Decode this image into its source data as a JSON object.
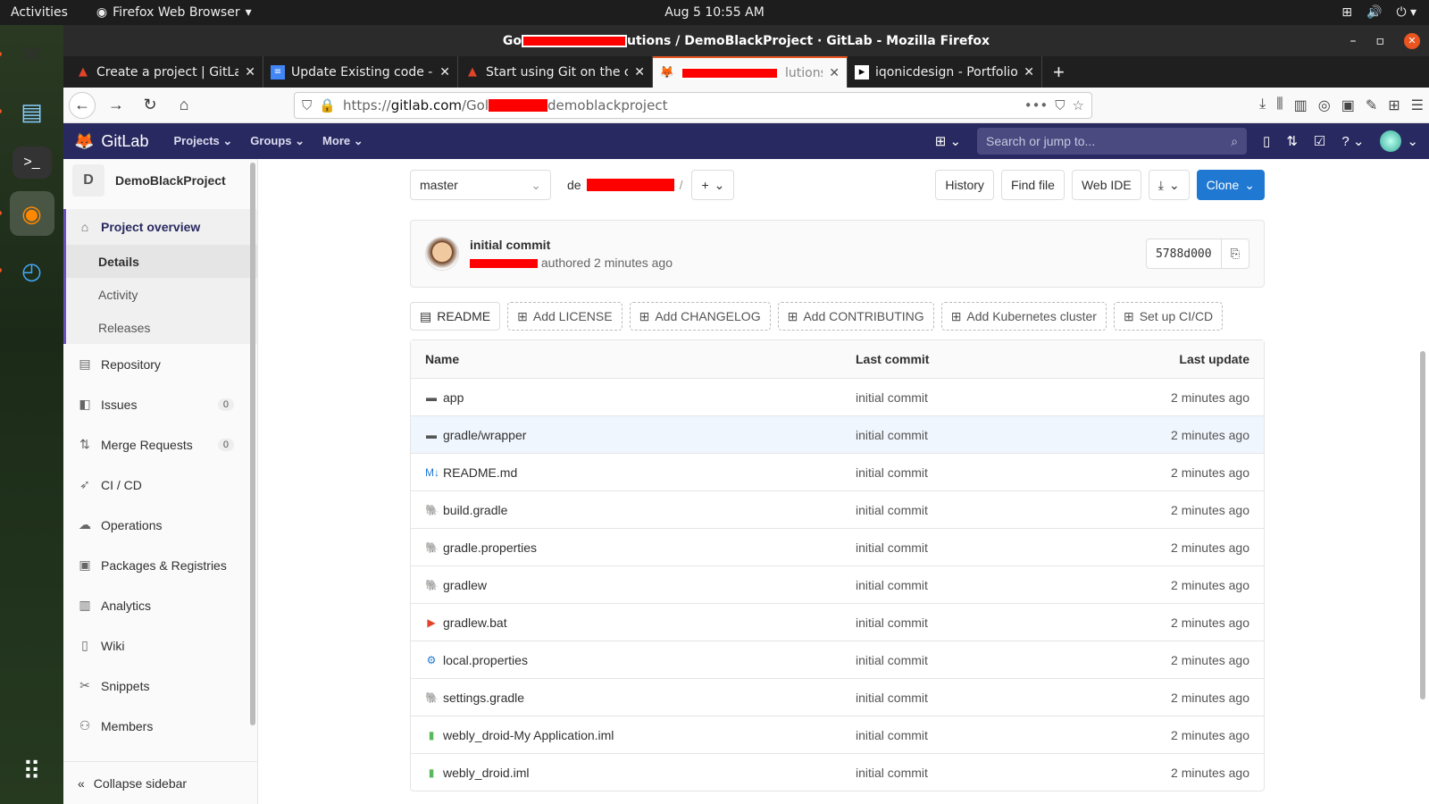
{
  "os": {
    "activities": "Activities",
    "app_menu": "Firefox Web Browser",
    "clock": "Aug 5  10:55 AM"
  },
  "window": {
    "title_prefix": "Go",
    "title_suffix": "utions / DemoBlackProject · GitLab - Mozilla Firefox"
  },
  "tabs": [
    {
      "title": "Create a project | GitLab",
      "icon": "gitlab-docs-icon"
    },
    {
      "title": "Update Existing code - G",
      "icon": "docs-icon"
    },
    {
      "title": "Start using Git on the co",
      "icon": "gitlab-docs-icon"
    },
    {
      "title": "lutions",
      "icon": "gitlab-icon",
      "active": true
    },
    {
      "title": "iqonicdesign - Portfolio |",
      "icon": "bird-icon"
    }
  ],
  "url": {
    "prefix": "https://",
    "host": "gitlab.com",
    "path1": "/Gol",
    "path2": "demoblackproject"
  },
  "gitlab": {
    "brand": "GitLab",
    "menus": [
      "Projects",
      "Groups",
      "More"
    ],
    "search_placeholder": "Search or jump to..."
  },
  "sidebar": {
    "project_initial": "D",
    "project_name": "DemoBlackProject",
    "overview": "Project overview",
    "sub": [
      "Details",
      "Activity",
      "Releases"
    ],
    "items": [
      {
        "label": "Repository",
        "icon": "doc-icon"
      },
      {
        "label": "Issues",
        "icon": "issues-icon",
        "badge": "0"
      },
      {
        "label": "Merge Requests",
        "icon": "merge-icon",
        "badge": "0"
      },
      {
        "label": "CI / CD",
        "icon": "rocket-icon"
      },
      {
        "label": "Operations",
        "icon": "cloud-icon"
      },
      {
        "label": "Packages & Registries",
        "icon": "package-icon"
      },
      {
        "label": "Analytics",
        "icon": "chart-icon"
      },
      {
        "label": "Wiki",
        "icon": "book-icon"
      },
      {
        "label": "Snippets",
        "icon": "scissors-icon"
      },
      {
        "label": "Members",
        "icon": "users-icon"
      }
    ],
    "collapse": "Collapse sidebar"
  },
  "repo": {
    "branch": "master",
    "path_prefix": "de",
    "buttons": {
      "history": "History",
      "find_file": "Find file",
      "web_ide": "Web IDE",
      "clone": "Clone"
    }
  },
  "commit": {
    "title": "initial commit",
    "meta": "authored 2 minutes ago",
    "sha": "5788d000"
  },
  "links": [
    "README",
    "Add LICENSE",
    "Add CHANGELOG",
    "Add CONTRIBUTING",
    "Add Kubernetes cluster",
    "Set up CI/CD"
  ],
  "table": {
    "headers": [
      "Name",
      "Last commit",
      "Last update"
    ],
    "rows": [
      {
        "name": "app",
        "icon": "folder-icon",
        "commit": "initial commit",
        "updated": "2 minutes ago"
      },
      {
        "name": "gradle/wrapper",
        "icon": "folder-icon",
        "commit": "initial commit",
        "updated": "2 minutes ago"
      },
      {
        "name": "README.md",
        "icon": "markdown-icon",
        "commit": "initial commit",
        "updated": "2 minutes ago"
      },
      {
        "name": "build.gradle",
        "icon": "gradle-icon",
        "commit": "initial commit",
        "updated": "2 minutes ago"
      },
      {
        "name": "gradle.properties",
        "icon": "gradle-icon",
        "commit": "initial commit",
        "updated": "2 minutes ago"
      },
      {
        "name": "gradlew",
        "icon": "gradle-icon",
        "commit": "initial commit",
        "updated": "2 minutes ago"
      },
      {
        "name": "gradlew.bat",
        "icon": "terminal-file-icon",
        "commit": "initial commit",
        "updated": "2 minutes ago"
      },
      {
        "name": "local.properties",
        "icon": "gear-icon",
        "commit": "initial commit",
        "updated": "2 minutes ago"
      },
      {
        "name": "settings.gradle",
        "icon": "gradle-icon",
        "commit": "initial commit",
        "updated": "2 minutes ago"
      },
      {
        "name": "webly_droid-My Application.iml",
        "icon": "iml-icon",
        "commit": "initial commit",
        "updated": "2 minutes ago"
      },
      {
        "name": "webly_droid.iml",
        "icon": "iml-icon",
        "commit": "initial commit",
        "updated": "2 minutes ago"
      }
    ]
  },
  "colors": {
    "gitlab_header": "#292961",
    "accent": "#1f78d1",
    "ubuntu_orange": "#e95420",
    "redaction": "#ff0000"
  }
}
